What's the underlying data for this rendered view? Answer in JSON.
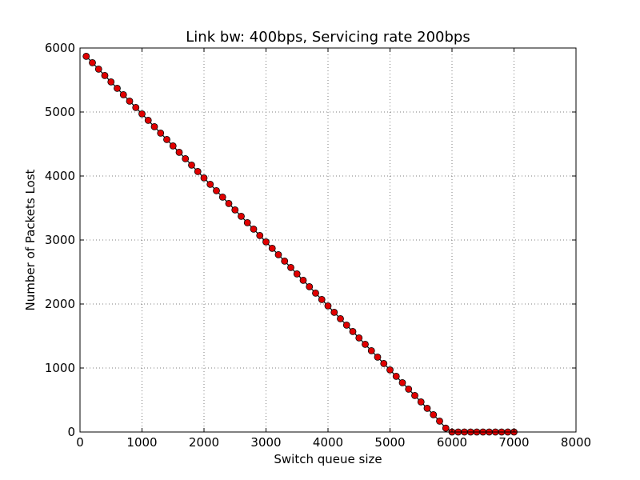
{
  "chart_data": {
    "type": "line",
    "title": "Link bw: 400bps, Servicing rate 200bps",
    "xlabel": "Switch queue size",
    "ylabel": "Number of Packets Lost",
    "xlim": [
      0,
      8000
    ],
    "ylim": [
      0,
      6000
    ],
    "xticks": [
      0,
      1000,
      2000,
      3000,
      4000,
      5000,
      6000,
      7000,
      8000
    ],
    "yticks": [
      0,
      1000,
      2000,
      3000,
      4000,
      5000,
      6000
    ],
    "grid": true,
    "marker": "circle",
    "series": [
      {
        "x": [
          100,
          200,
          300,
          400,
          500,
          600,
          700,
          800,
          900,
          1000,
          1100,
          1200,
          1300,
          1400,
          1500,
          1600,
          1700,
          1800,
          1900,
          2000,
          2100,
          2200,
          2300,
          2400,
          2500,
          2600,
          2700,
          2800,
          2900,
          3000,
          3100,
          3200,
          3300,
          3400,
          3500,
          3600,
          3700,
          3800,
          3900,
          4000,
          4100,
          4200,
          4300,
          4400,
          4500,
          4600,
          4700,
          4800,
          4900,
          5000,
          5100,
          5200,
          5300,
          5400,
          5500,
          5600,
          5700,
          5800,
          5900,
          6000,
          6100,
          6200,
          6300,
          6400,
          6500,
          6600,
          6700,
          6800,
          6900,
          7000
        ],
        "values": [
          5870,
          5770,
          5670,
          5570,
          5470,
          5370,
          5270,
          5170,
          5070,
          4970,
          4870,
          4770,
          4670,
          4570,
          4470,
          4370,
          4270,
          4170,
          4070,
          3970,
          3870,
          3770,
          3670,
          3570,
          3470,
          3370,
          3270,
          3170,
          3070,
          2970,
          2870,
          2770,
          2670,
          2570,
          2470,
          2370,
          2270,
          2170,
          2070,
          1970,
          1870,
          1770,
          1670,
          1570,
          1470,
          1370,
          1270,
          1170,
          1070,
          970,
          870,
          770,
          670,
          570,
          470,
          370,
          270,
          170,
          60,
          0,
          0,
          0,
          0,
          0,
          0,
          0,
          0,
          0,
          0,
          0
        ]
      }
    ],
    "colors": {
      "line": "#000000",
      "marker_fill": "#e00000",
      "marker_edge": "#000000",
      "grid": "#7f7f7f"
    }
  }
}
